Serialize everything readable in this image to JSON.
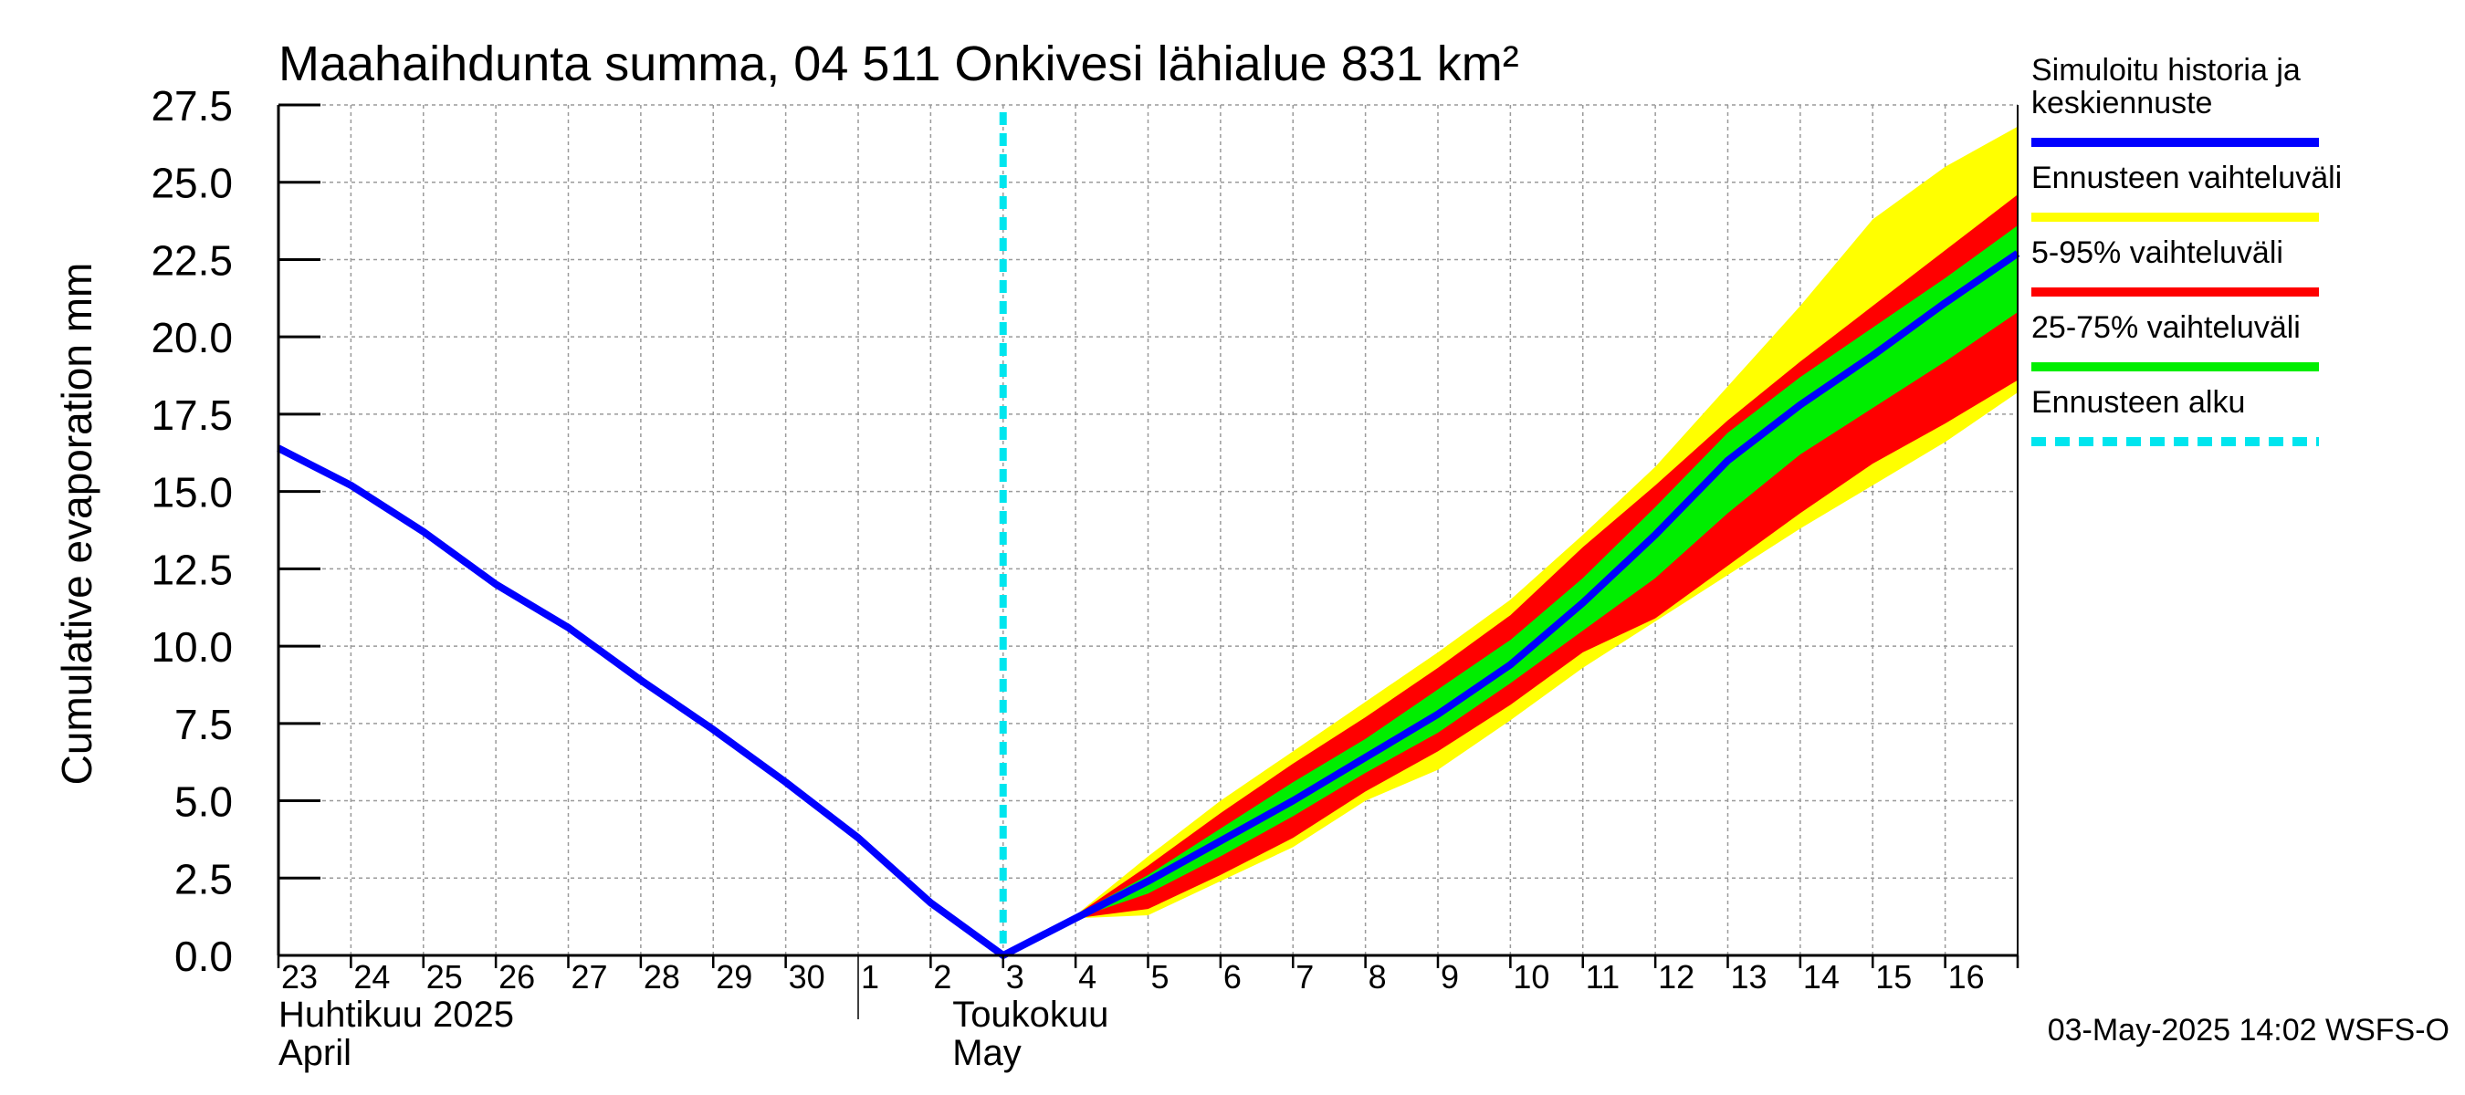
{
  "chart_data": {
    "type": "area",
    "title": "Maahaihdunta summa, 04 511 Onkivesi lähialue 831 km²",
    "ylabel": "Cumulative evaporation   mm",
    "ylim": [
      0,
      27.5
    ],
    "yticks": [
      "0.0",
      "2.5",
      "5.0",
      "7.5",
      "10.0",
      "12.5",
      "15.0",
      "17.5",
      "20.0",
      "22.5",
      "25.0",
      "27.5"
    ],
    "x_day_labels": [
      "23",
      "24",
      "25",
      "26",
      "27",
      "28",
      "29",
      "30",
      "1",
      "2",
      "3",
      "4",
      "5",
      "6",
      "7",
      "8",
      "9",
      "10",
      "11",
      "12",
      "13",
      "14",
      "15",
      "16"
    ],
    "month_labels": [
      {
        "line1": "Huhtikuu  2025",
        "line2": "April"
      },
      {
        "line1": "Toukokuu",
        "line2": "May"
      }
    ],
    "grid": true,
    "legend_position": "right",
    "forecast_start_day": 10.0,
    "footer": "03-May-2025 14:02 WSFS-O",
    "legend": [
      {
        "label": "Simuloitu historia ja\nkeskiennuste",
        "color": "#0000ff",
        "style": "solid"
      },
      {
        "label": "Ennusteen vaihteluväli",
        "color": "#ffff00",
        "style": "solid"
      },
      {
        "label": "5-95% vaihteluväli",
        "color": "#ff0000",
        "style": "solid"
      },
      {
        "label": "25-75% vaihteluväli",
        "color": "#00ee00",
        "style": "solid"
      },
      {
        "label": "Ennusteen alku",
        "color": "#00e5ee",
        "style": "dashed"
      }
    ],
    "history": {
      "name": "Simuloitu historia ja keskiennuste",
      "x": [
        0,
        1,
        2,
        3,
        4,
        5,
        6,
        7,
        8,
        9,
        10
      ],
      "y": [
        16.4,
        15.2,
        13.7,
        12.0,
        10.6,
        8.9,
        7.3,
        5.6,
        3.8,
        1.7,
        0.0
      ]
    },
    "forecast": {
      "x": [
        10,
        11,
        12,
        13,
        14,
        15,
        16,
        17,
        18,
        19,
        20,
        21,
        22,
        23,
        24
      ],
      "median": [
        0.0,
        1.2,
        2.4,
        3.7,
        5.0,
        6.4,
        7.8,
        9.4,
        11.4,
        13.6,
        16.0,
        17.8,
        19.4,
        21.1,
        22.7
      ],
      "range_min": [
        0.0,
        1.2,
        1.3,
        2.4,
        3.5,
        5.0,
        6.0,
        7.6,
        9.3,
        10.8,
        12.3,
        13.8,
        15.2,
        16.6,
        18.2
      ],
      "range_max": [
        0.0,
        1.3,
        3.2,
        5.0,
        6.6,
        8.2,
        9.8,
        11.5,
        13.6,
        15.8,
        18.4,
        21.0,
        23.8,
        25.5,
        26.8
      ],
      "p05": [
        0.0,
        1.2,
        1.5,
        2.6,
        3.8,
        5.3,
        6.6,
        8.1,
        9.8,
        10.9,
        12.6,
        14.3,
        15.9,
        17.2,
        18.6
      ],
      "p95": [
        0.0,
        1.3,
        2.9,
        4.6,
        6.2,
        7.7,
        9.3,
        11.0,
        13.2,
        15.2,
        17.3,
        19.2,
        21.0,
        22.8,
        24.6
      ],
      "p25": [
        0.0,
        1.2,
        2.0,
        3.2,
        4.5,
        5.9,
        7.2,
        8.8,
        10.5,
        12.2,
        14.3,
        16.2,
        17.7,
        19.2,
        20.8
      ],
      "p75": [
        0.0,
        1.3,
        2.6,
        4.1,
        5.6,
        7.0,
        8.6,
        10.2,
        12.2,
        14.5,
        16.9,
        18.7,
        20.3,
        21.9,
        23.6
      ]
    }
  }
}
